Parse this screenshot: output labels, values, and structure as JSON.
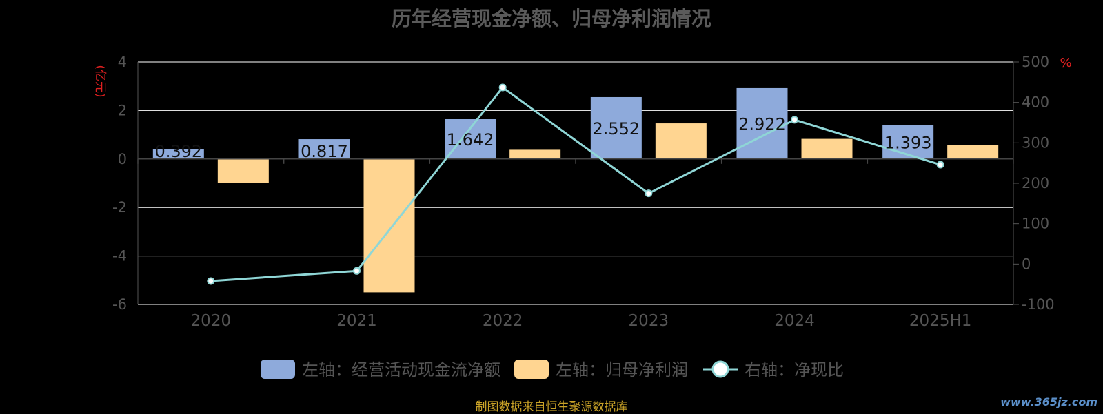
{
  "title": "历年经营现金净额、归母净利润情况",
  "footer": "制图数据来自恒生聚源数据库",
  "watermark": "www.365jz.com",
  "colors": {
    "background": "#000000",
    "cash_flow_bar": "#8eaadb",
    "net_profit_bar": "#ffd591",
    "ratio_line": "#8fd6d6",
    "axis_text": "#555555",
    "axis_unit": "#e02020",
    "grid": "#ffffff"
  },
  "chart_data": {
    "type": "bar",
    "categories": [
      "2020",
      "2021",
      "2022",
      "2023",
      "2024",
      "2025H1"
    ],
    "left_axis": {
      "label": "(亿元)",
      "ylim": [
        -6,
        4
      ],
      "ticks": [
        "-6",
        "-4",
        "-2",
        "0",
        "2",
        "4"
      ]
    },
    "right_axis": {
      "label": "%",
      "ylim": [
        -100,
        500
      ],
      "ticks": [
        "-100",
        "0",
        "100",
        "200",
        "300",
        "400",
        "500"
      ]
    },
    "grid": true,
    "legend_position": "bottom",
    "series": [
      {
        "name": "左轴：经营活动现金流净额",
        "type": "bar",
        "axis": "left",
        "values": [
          0.392,
          0.817,
          1.642,
          2.552,
          2.922,
          1.393
        ],
        "labels": [
          "0.392",
          "0.817",
          "1.642",
          "2.552",
          "2.922",
          "1.393"
        ]
      },
      {
        "name": "左轴：归母净利润",
        "type": "bar",
        "axis": "left",
        "values": [
          -1.0,
          -5.5,
          0.38,
          1.47,
          0.83,
          0.58
        ]
      },
      {
        "name": "右轴：净现比",
        "type": "line",
        "axis": "right",
        "values": [
          -42,
          -17,
          437,
          175,
          357,
          246
        ]
      }
    ]
  }
}
